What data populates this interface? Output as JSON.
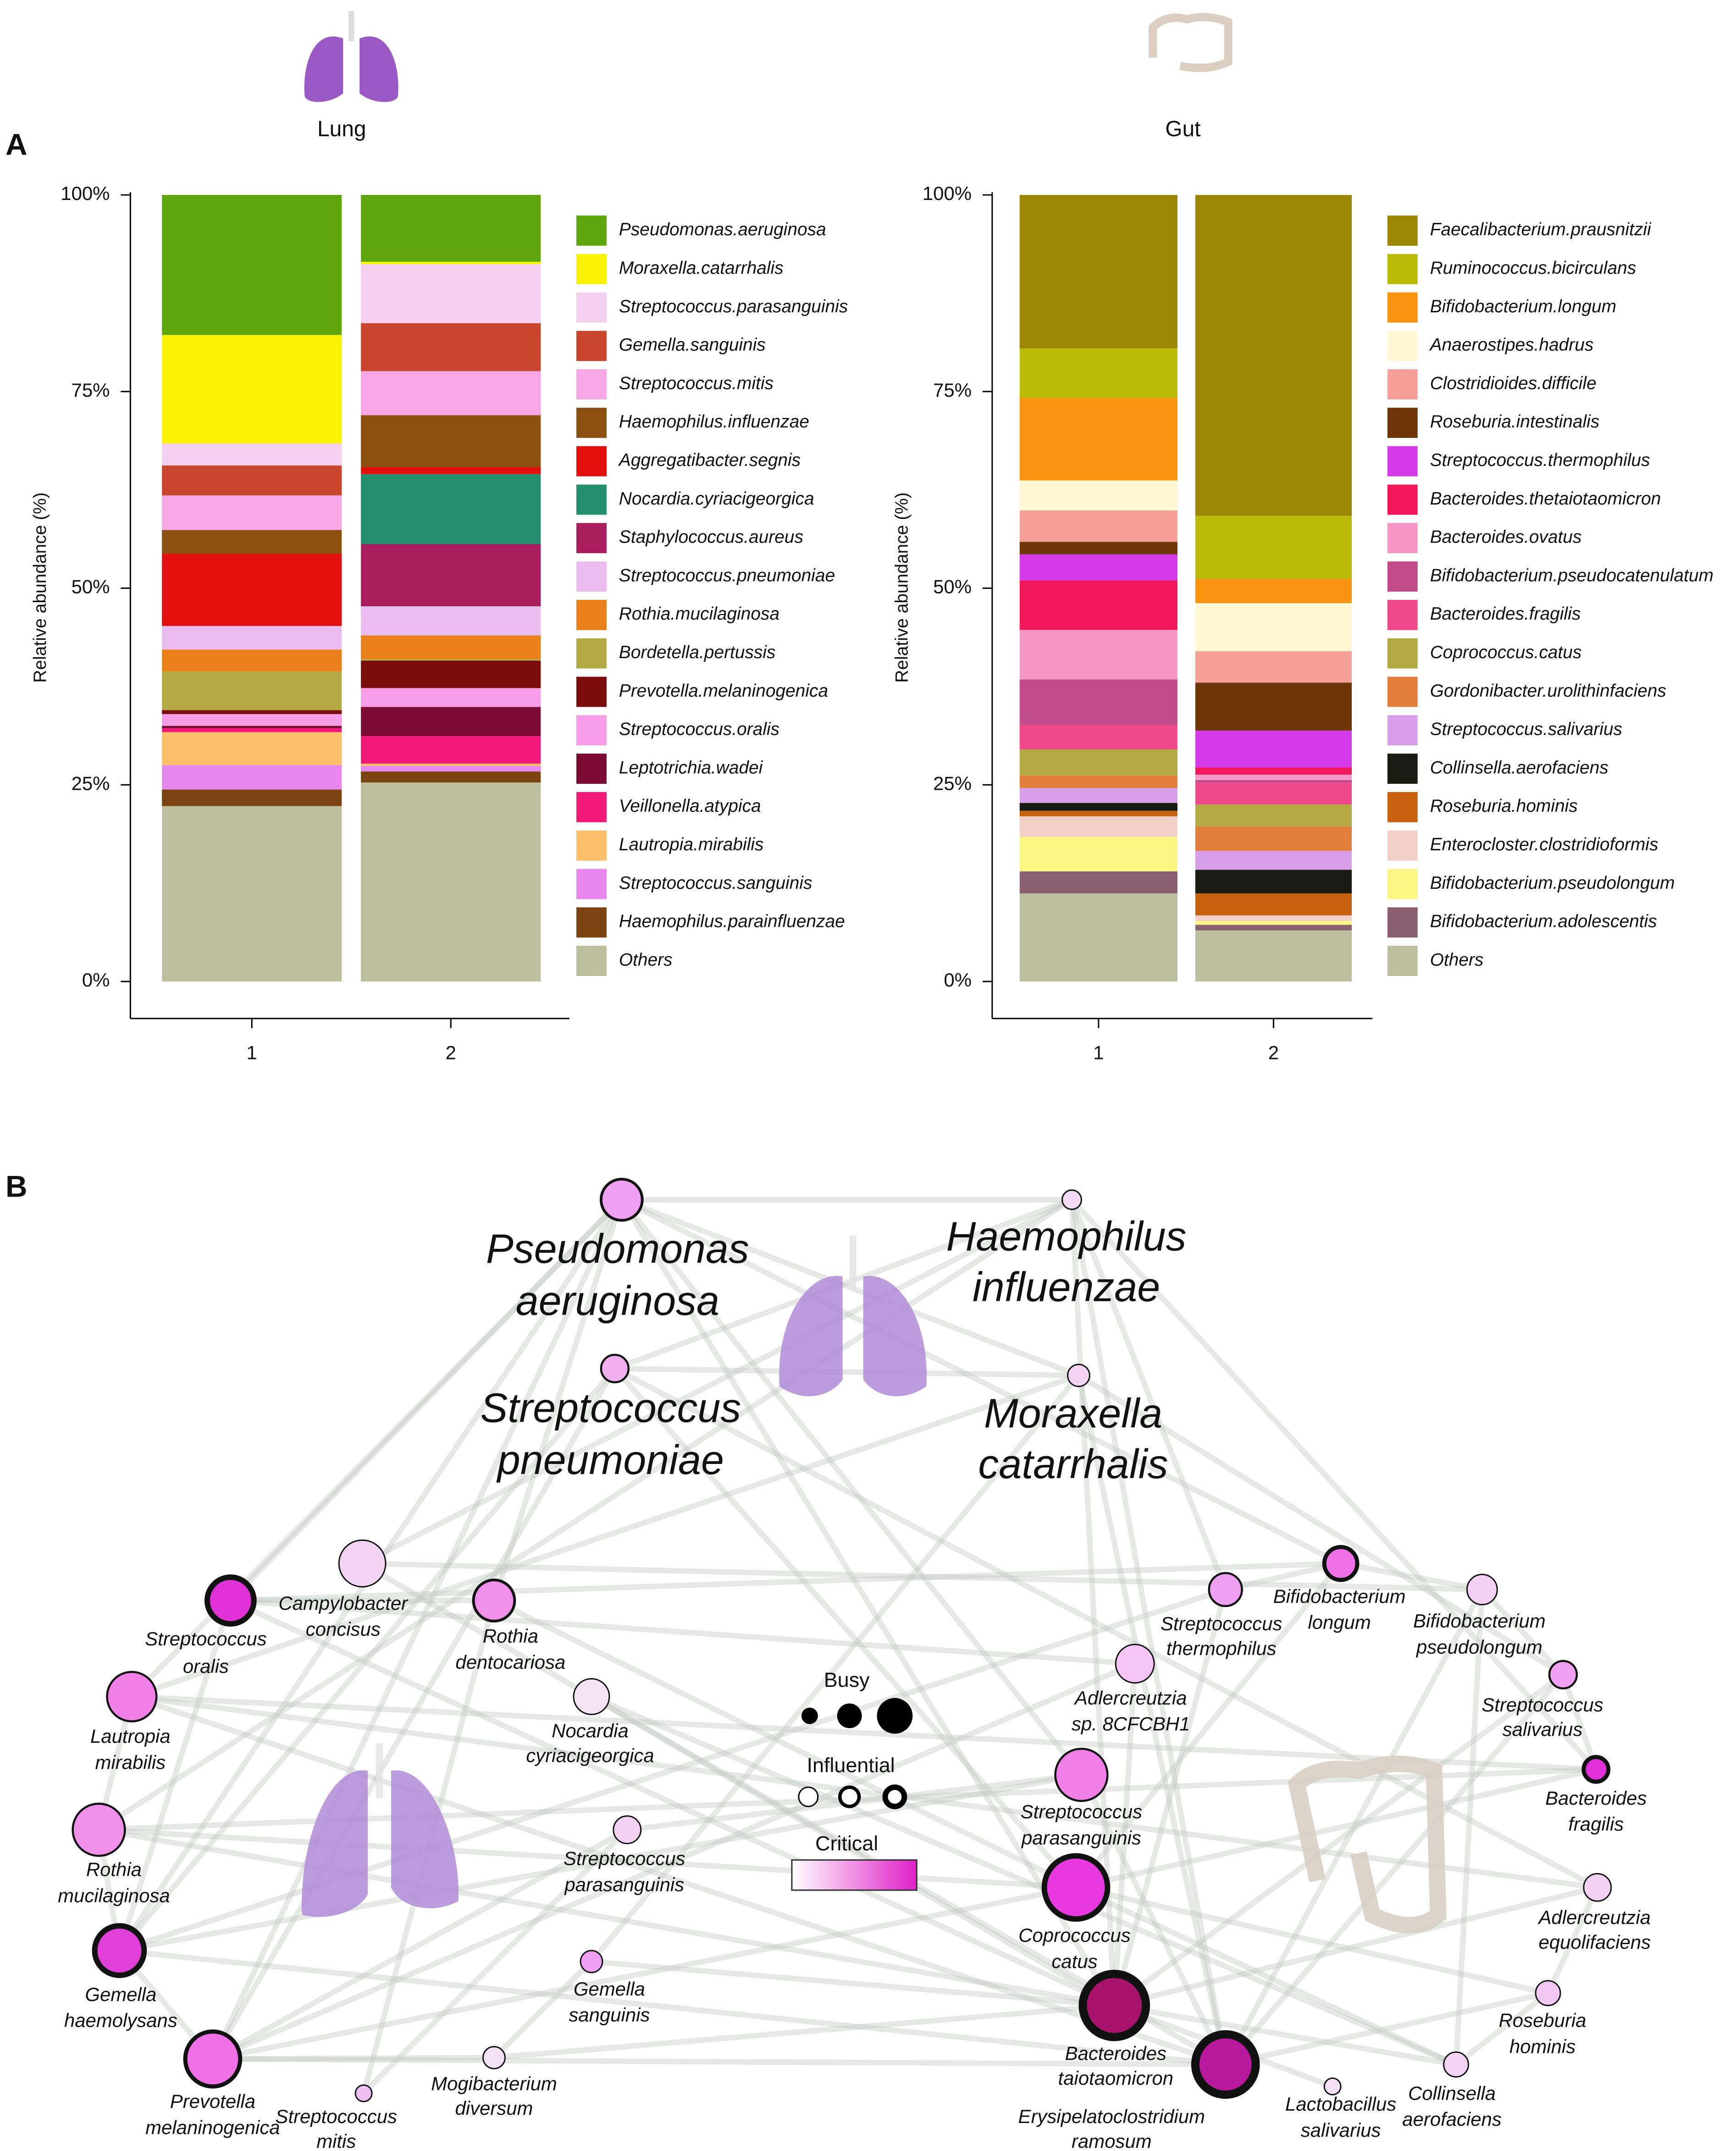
{
  "panel_labels": [
    "A",
    "B"
  ],
  "chart_data": [
    {
      "type": "bar",
      "stacked": true,
      "title": "Lung",
      "ylabel": "Relative abundance (%)",
      "categories": [
        "1",
        "2"
      ],
      "ylim": [
        0,
        100
      ],
      "yticks": [
        {
          "value": 0,
          "label": "0%"
        },
        {
          "value": 25,
          "label": "25%"
        },
        {
          "value": 50,
          "label": "50%"
        },
        {
          "value": 75,
          "label": "75%"
        },
        {
          "value": 100,
          "label": "100%"
        }
      ],
      "series": [
        {
          "name": "Pseudomonas.aeruginosa",
          "color": "#5ea60c",
          "values": [
            17.8,
            8.5
          ]
        },
        {
          "name": "Moraxella.catarrhalis",
          "color": "#f9f200",
          "values": [
            13.8,
            0.3
          ]
        },
        {
          "name": "Streptococcus.parasanguinis",
          "color": "#f5d0ee",
          "values": [
            2.8,
            7.5
          ]
        },
        {
          "name": "Gemella.sanguinis",
          "color": "#c8442a",
          "values": [
            3.8,
            6.1
          ]
        },
        {
          "name": "Streptococcus.mitis",
          "color": "#f7a6e6",
          "values": [
            4.4,
            5.6
          ]
        },
        {
          "name": "Haemophilus.influenzae",
          "color": "#8b4f0f",
          "values": [
            3.0,
            6.6
          ]
        },
        {
          "name": "Aggregatibacter.segnis",
          "color": "#e2100c",
          "values": [
            9.2,
            0.9
          ]
        },
        {
          "name": "Nocardia.cyriacigeorgica",
          "color": "#238f6e",
          "values": [
            0,
            8.9
          ]
        },
        {
          "name": "Staphylococcus.aureus",
          "color": "#a81d5c",
          "values": [
            0,
            7.9
          ]
        },
        {
          "name": "Streptococcus.pneumoniae",
          "color": "#ebbcf0",
          "values": [
            3.0,
            3.7
          ]
        },
        {
          "name": "Rothia.mucilaginosa",
          "color": "#e9801a",
          "values": [
            2.8,
            3.0
          ]
        },
        {
          "name": "Bordetella.pertussis",
          "color": "#b4aa44",
          "values": [
            4.9,
            0.2
          ]
        },
        {
          "name": "Prevotella.melaninogenica",
          "color": "#7a0c0c",
          "values": [
            0.5,
            3.5
          ]
        },
        {
          "name": "Streptococcus.oralis",
          "color": "#f79de8",
          "values": [
            1.5,
            2.4
          ]
        },
        {
          "name": "Leptotrichia.wadei",
          "color": "#7b0a32",
          "values": [
            0.3,
            3.7
          ]
        },
        {
          "name": "Veillonella.atypica",
          "color": "#f2197a",
          "values": [
            0.5,
            3.5
          ]
        },
        {
          "name": "Lautropia.mirabilis",
          "color": "#fdbe6a",
          "values": [
            4.2,
            0.3
          ]
        },
        {
          "name": "Streptococcus.sanguinis",
          "color": "#e887ee",
          "values": [
            3.1,
            0.7
          ]
        },
        {
          "name": "Haemophilus.parainfluenzae",
          "color": "#7a4310",
          "values": [
            2.1,
            1.4
          ]
        },
        {
          "name": "Others",
          "color": "#bbbf9e",
          "values": [
            22.3,
            25.3
          ]
        }
      ]
    },
    {
      "type": "bar",
      "stacked": true,
      "title": "Gut",
      "ylabel": "Relative abundance (%)",
      "categories": [
        "1",
        "2"
      ],
      "ylim": [
        0,
        100
      ],
      "yticks": [
        {
          "value": 0,
          "label": "0%"
        },
        {
          "value": 25,
          "label": "25%"
        },
        {
          "value": 50,
          "label": "50%"
        },
        {
          "value": 75,
          "label": "75%"
        },
        {
          "value": 100,
          "label": "100%"
        }
      ],
      "series": [
        {
          "name": "Faecalibacterium.prausnitzii",
          "color": "#9b8704",
          "values": [
            19.5,
            40.8
          ]
        },
        {
          "name": "Ruminococcus.bicirculans",
          "color": "#bbbb07",
          "values": [
            6.3,
            8.0
          ]
        },
        {
          "name": "Bifidobacterium.longum",
          "color": "#f8940f",
          "values": [
            10.5,
            3.1
          ]
        },
        {
          "name": "Anaerostipes.hadrus",
          "color": "#fff8d2",
          "values": [
            3.8,
            6.1
          ]
        },
        {
          "name": "Clostridioides.difficile",
          "color": "#f7a099",
          "values": [
            4.0,
            4.0
          ]
        },
        {
          "name": "Roseburia.intestinalis",
          "color": "#6e3507",
          "values": [
            1.6,
            6.1
          ]
        },
        {
          "name": "Streptococcus.thermophilus",
          "color": "#d53ae8",
          "values": [
            3.3,
            4.7
          ]
        },
        {
          "name": "Bacteroides.thetaiotaomicron",
          "color": "#f0175a",
          "values": [
            6.3,
            0.9
          ]
        },
        {
          "name": "Bacteroides.ovatus",
          "color": "#f596c4",
          "values": [
            6.3,
            0.7
          ]
        },
        {
          "name": "Bifidobacterium.pseudocatenulatum",
          "color": "#c24b8b",
          "values": [
            5.8,
            0.3
          ]
        },
        {
          "name": "Bacteroides.fragilis",
          "color": "#f0498b",
          "values": [
            3.1,
            2.8
          ]
        },
        {
          "name": "Coprococcus.catus",
          "color": "#b4aa44",
          "values": [
            3.3,
            2.8
          ]
        },
        {
          "name": "Gordonibacter.urolithinfaciens",
          "color": "#e27f3d",
          "values": [
            1.6,
            3.1
          ]
        },
        {
          "name": "Streptococcus.salivarius",
          "color": "#d8a0e8",
          "values": [
            1.9,
            2.4
          ]
        },
        {
          "name": "Collinsella.aerofaciens",
          "color": "#1a1c12",
          "values": [
            1.0,
            3.0
          ]
        },
        {
          "name": "Roseburia.hominis",
          "color": "#c8620e",
          "values": [
            0.7,
            2.8
          ]
        },
        {
          "name": "Enterocloster.clostridioformis",
          "color": "#f2d0c6",
          "values": [
            2.6,
            0.7
          ]
        },
        {
          "name": "Bifidobacterium.pseudolongum",
          "color": "#fbf583",
          "values": [
            4.4,
            0.5
          ]
        },
        {
          "name": "Bifidobacterium.adolescentis",
          "color": "#8a6070",
          "values": [
            2.8,
            0.7
          ]
        },
        {
          "name": "Others",
          "color": "#bbbf9e",
          "values": [
            11.2,
            6.5
          ]
        }
      ]
    }
  ],
  "network": {
    "nodes": [
      {
        "label": [
          "Pseudomonas",
          "aeruginosa"
        ]
      },
      {
        "label": [
          "Haemophilus",
          "influenzae"
        ]
      },
      {
        "label": [
          "Streptococcus",
          "pneumoniae"
        ]
      },
      {
        "label": [
          "Moraxella",
          "catarrhalis"
        ]
      },
      {
        "label": [
          "Streptococcus",
          "oralis"
        ]
      },
      {
        "label": [
          "Campylobacter",
          "concisus"
        ]
      },
      {
        "label": [
          "Rothia",
          "dentocariosa"
        ]
      },
      {
        "label": [
          "Nocardia",
          "cyriacigeorgica"
        ]
      },
      {
        "label": [
          "Lautropia",
          "mirabilis"
        ]
      },
      {
        "label": [
          "Streptococcus",
          "parasanguinis"
        ]
      },
      {
        "label": [
          "Rothia",
          "mucilaginosa"
        ]
      },
      {
        "label": [
          "Gemella",
          "haemolysans"
        ]
      },
      {
        "label": [
          "Gemella",
          "sanguinis"
        ]
      },
      {
        "label": [
          "Prevotella",
          "melaninogenica"
        ]
      },
      {
        "label": [
          "Streptococcus",
          "mitis"
        ]
      },
      {
        "label": [
          "Mogibacterium",
          "diversum"
        ]
      },
      {
        "label": [
          "Bifidobacterium",
          "longum"
        ]
      },
      {
        "label": [
          "Streptococcus",
          "thermophilus"
        ]
      },
      {
        "label": [
          "Bifidobacterium",
          "pseudolongum"
        ]
      },
      {
        "label": [
          "Adlercreutzia",
          "sp. 8CFCBH1"
        ]
      },
      {
        "label": [
          "Streptococcus",
          "salivarius"
        ]
      },
      {
        "label": [
          "Bacteroides",
          "fragilis"
        ]
      },
      {
        "label": [
          "Streptococcus",
          "parasanguinis"
        ]
      },
      {
        "label": [
          "Coprococcus",
          "catus"
        ]
      },
      {
        "label": [
          "Adlercreutzia",
          "equolifaciens"
        ]
      },
      {
        "label": [
          "Bacteroides",
          "taiotaomicron"
        ]
      },
      {
        "label": [
          "Roseburia",
          "hominis"
        ]
      },
      {
        "label": [
          "Erysipelatoclostridium",
          "ramosum"
        ]
      },
      {
        "label": [
          "Lactobacillus",
          "salivarius"
        ]
      },
      {
        "label": [
          "Collinsella",
          "aerofaciens"
        ]
      }
    ],
    "legend": {
      "busy": "Busy",
      "influential": "Influential",
      "critical": "Critical"
    }
  }
}
